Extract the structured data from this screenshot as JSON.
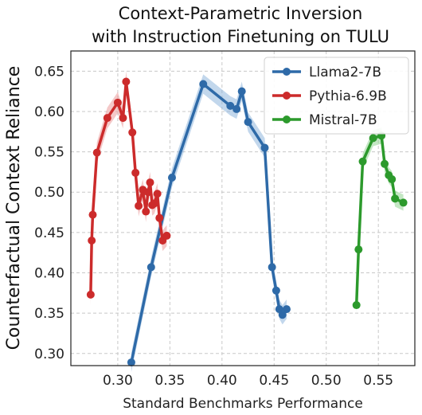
{
  "chart_data": {
    "type": "line",
    "title": [
      "Context-Parametric Inversion",
      "with Instruction Finetuning on TULU"
    ],
    "xlabel": "Standard Benchmarks Performance",
    "ylabel": "Counterfactual Context Reliance",
    "xlim": [
      0.255,
      0.585
    ],
    "ylim": [
      0.285,
      0.675
    ],
    "xticks": [
      0.3,
      0.35,
      0.4,
      0.45,
      0.5,
      0.55
    ],
    "xtick_labels": [
      "0.30",
      "0.35",
      "0.40",
      "0.45",
      "0.50",
      "0.55"
    ],
    "yticks": [
      0.3,
      0.35,
      0.4,
      0.45,
      0.5,
      0.55,
      0.6,
      0.65
    ],
    "ytick_labels": [
      "0.30",
      "0.35",
      "0.40",
      "0.45",
      "0.50",
      "0.55",
      "0.60",
      "0.65"
    ],
    "grid": true,
    "legend_position": "top-right",
    "series": [
      {
        "name": "Llama2-7B",
        "color": "#2e6aa8",
        "band_color": "#8fb6dc",
        "band": 0.012,
        "x": [
          0.313,
          0.332,
          0.352,
          0.382,
          0.408,
          0.414,
          0.419,
          0.425,
          0.441,
          0.448,
          0.452,
          0.455,
          0.458,
          0.462
        ],
        "y": [
          0.289,
          0.407,
          0.518,
          0.634,
          0.607,
          0.603,
          0.625,
          0.587,
          0.555,
          0.407,
          0.378,
          0.355,
          0.348,
          0.355
        ]
      },
      {
        "name": "Pythia-6.9B",
        "color": "#cc2b2b",
        "band_color": "#eb9a9a",
        "band": 0.013,
        "x": [
          0.274,
          0.275,
          0.276,
          0.28,
          0.29,
          0.3,
          0.305,
          0.308,
          0.314,
          0.317,
          0.32,
          0.324,
          0.327,
          0.329,
          0.331,
          0.333,
          0.335,
          0.338,
          0.34,
          0.343,
          0.347
        ],
        "y": [
          0.373,
          0.44,
          0.472,
          0.549,
          0.592,
          0.611,
          0.592,
          0.637,
          0.574,
          0.524,
          0.483,
          0.503,
          0.476,
          0.5,
          0.512,
          0.484,
          0.486,
          0.498,
          0.468,
          0.44,
          0.446
        ]
      },
      {
        "name": "Mistral-7B",
        "color": "#2c9a2c",
        "band_color": "#94d394",
        "band": 0.01,
        "x": [
          0.529,
          0.531,
          0.535,
          0.545,
          0.553,
          0.556,
          0.56,
          0.563,
          0.566,
          0.574
        ],
        "y": [
          0.36,
          0.429,
          0.538,
          0.567,
          0.57,
          0.535,
          0.521,
          0.516,
          0.492,
          0.487
        ]
      }
    ]
  }
}
